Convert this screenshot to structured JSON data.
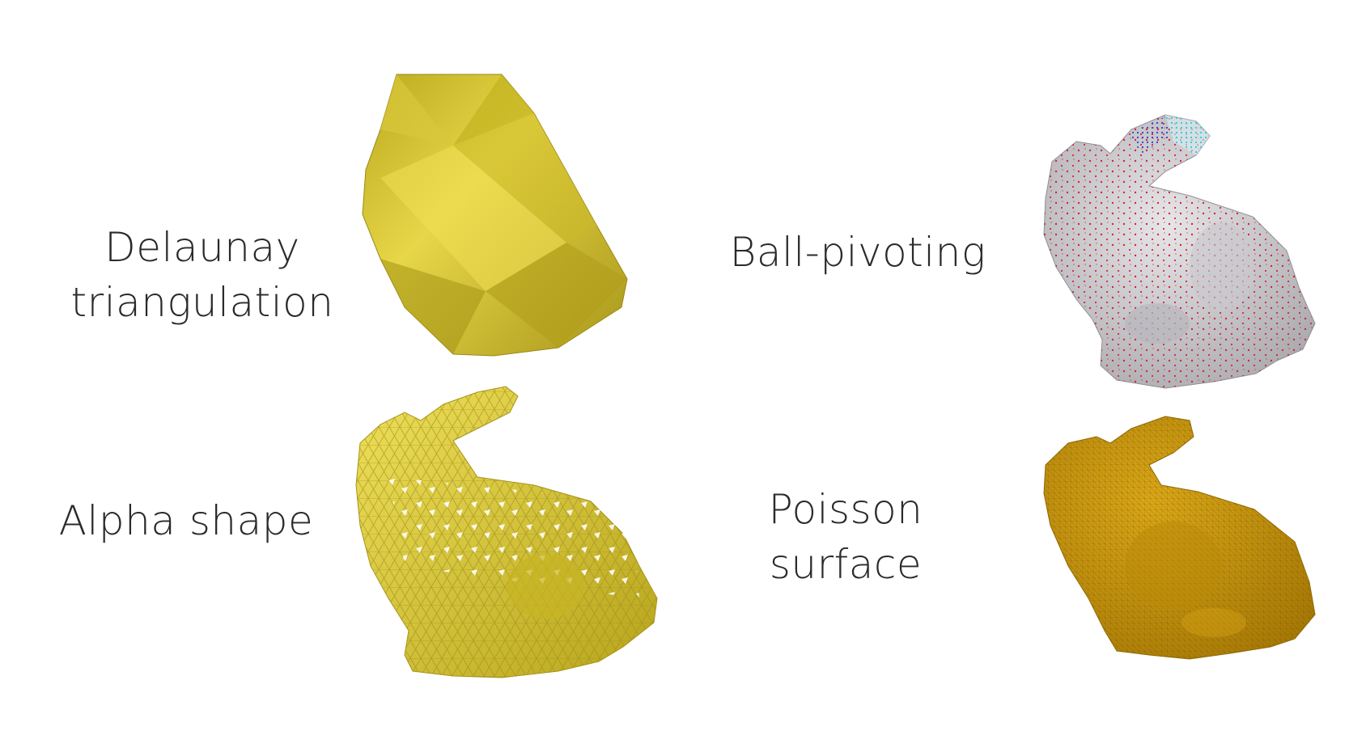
{
  "labels": {
    "delaunay": [
      "Delaunay",
      "triangulation"
    ],
    "ball_pivoting": [
      "Ball-pivoting"
    ],
    "alpha_shape": [
      "Alpha shape"
    ],
    "poisson": [
      "Poisson",
      "surface"
    ]
  },
  "colors": {
    "delaunay_fill": "#c8b41e",
    "alpha_fill": "#d6c229",
    "ball_pivot_fill": "#cfcfd3",
    "poisson_fill": "#c9950b",
    "point_red": "#d22a2a",
    "point_blue": "#2b3fd4",
    "point_cyan": "#35c8d8"
  }
}
